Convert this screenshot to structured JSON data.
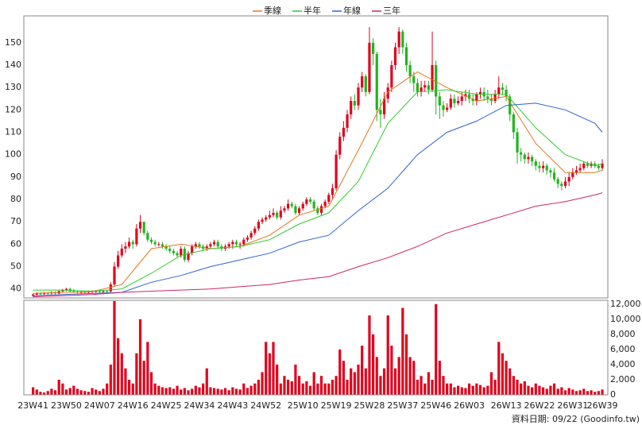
{
  "chart_data": [
    {
      "type": "candlestick",
      "up_color": "#e3001b",
      "down_color": "#1fb51f",
      "xlim": [
        -2.5,
        155.5
      ],
      "ylim": [
        36,
        162
      ],
      "yticks": [
        40,
        50,
        60,
        70,
        80,
        90,
        100,
        110,
        120,
        130,
        140,
        150
      ],
      "grid": true,
      "legend": "top",
      "open": [
        37,
        37.5,
        38,
        37.8,
        38.2,
        38,
        38.5,
        38,
        39,
        39.5,
        40,
        39,
        38.8,
        38.5,
        38.7,
        38.6,
        38.8,
        38.9,
        39,
        38.8,
        39,
        38.9,
        42,
        50,
        55,
        58,
        59,
        61,
        60,
        67,
        70,
        65,
        62,
        61,
        60,
        60,
        59,
        58,
        57,
        56,
        55,
        58,
        53,
        56,
        59,
        60,
        59,
        58,
        59,
        60,
        61,
        59,
        58,
        59,
        60,
        61,
        60,
        60,
        62,
        63,
        65,
        67,
        70,
        71,
        72,
        73,
        74,
        72,
        75,
        76,
        78,
        77,
        74,
        76,
        78,
        80,
        79,
        76,
        74,
        77,
        79,
        82,
        85,
        100,
        108,
        112,
        118,
        124,
        122,
        130,
        135,
        128,
        150,
        145,
        120,
        118,
        125,
        130,
        140,
        148,
        155,
        148,
        140,
        135,
        132,
        128,
        130,
        131,
        129,
        140,
        126,
        122,
        120,
        121,
        125,
        123,
        124,
        126,
        127,
        125,
        124,
        127,
        128,
        126,
        125,
        124,
        127,
        130,
        129,
        126,
        118,
        110,
        101,
        100,
        98,
        99,
        97,
        95,
        94,
        95,
        93,
        92,
        89,
        87,
        86,
        88,
        90,
        92,
        93,
        94,
        96,
        95,
        96,
        95,
        94
      ],
      "high": [
        38,
        38.5,
        38.5,
        38.7,
        38.7,
        39,
        39,
        39.5,
        40,
        40.5,
        40.5,
        40,
        39.3,
        39.2,
        39.2,
        39.3,
        39.4,
        39.5,
        39.5,
        39.5,
        39.5,
        43,
        52,
        57,
        60,
        61,
        63,
        62,
        69,
        73,
        70,
        66,
        63,
        62,
        61,
        61,
        60,
        59,
        58,
        57,
        59,
        59,
        57,
        60,
        61,
        61,
        60,
        60,
        61,
        62,
        62,
        60,
        60,
        61,
        62,
        62,
        61,
        63,
        64,
        66,
        68,
        71,
        72,
        73,
        75,
        76,
        75,
        77,
        77,
        80,
        79,
        78,
        77,
        79,
        81,
        81,
        80,
        77,
        78,
        80,
        83,
        87,
        102,
        110,
        115,
        120,
        126,
        127,
        132,
        137,
        136,
        157,
        152,
        146,
        125,
        128,
        132,
        142,
        150,
        157,
        156,
        150,
        142,
        137,
        134,
        133,
        133,
        133,
        155,
        142,
        128,
        124,
        123,
        127,
        127,
        126,
        128,
        129,
        129,
        127,
        128,
        130,
        130,
        129,
        127,
        129,
        135,
        132,
        131,
        127,
        119,
        112,
        103,
        101,
        101,
        100,
        98,
        97,
        97,
        96,
        94,
        94,
        90,
        88,
        90,
        92,
        94,
        95,
        96,
        97,
        97,
        97,
        97,
        96,
        98
      ],
      "low": [
        36.5,
        37,
        37.3,
        37.3,
        37.5,
        37.5,
        37.5,
        37.5,
        38.5,
        39,
        38.5,
        38.3,
        38,
        38,
        38.1,
        38.1,
        38.3,
        38.4,
        38.3,
        38.3,
        38.4,
        38.5,
        41,
        49,
        54,
        56,
        58,
        58,
        59,
        65,
        64,
        61,
        60,
        59,
        59,
        58,
        57,
        56,
        55,
        54,
        54,
        52,
        52,
        55,
        58,
        58,
        57,
        57,
        58,
        59,
        58,
        57,
        57,
        58,
        58,
        59,
        58,
        59,
        61,
        62,
        64,
        66,
        69,
        70,
        71,
        72,
        71,
        71,
        74,
        75,
        76,
        73,
        73,
        75,
        77,
        78,
        75,
        73,
        73,
        76,
        78,
        80,
        84,
        98,
        106,
        110,
        116,
        120,
        120,
        128,
        126,
        127,
        140,
        115,
        112,
        116,
        123,
        128,
        138,
        145,
        145,
        137,
        132,
        128,
        126,
        126,
        128,
        127,
        128,
        118,
        116,
        117,
        119,
        120,
        121,
        122,
        122,
        124,
        123,
        122,
        122,
        125,
        124,
        123,
        122,
        123,
        125,
        127,
        124,
        115,
        107,
        96,
        97,
        96,
        96,
        95,
        93,
        92,
        92,
        91,
        90,
        88,
        85,
        84,
        85,
        86,
        89,
        91,
        92,
        93,
        94,
        94,
        94,
        93,
        93
      ],
      "close": [
        37.5,
        38,
        37.8,
        38.2,
        38,
        38.5,
        38,
        39,
        39.5,
        40,
        39,
        38.8,
        38.5,
        38.7,
        38.6,
        38.8,
        38.9,
        39,
        38.8,
        39,
        38.9,
        42,
        50,
        55,
        58,
        59,
        61,
        60,
        67,
        70,
        65,
        62,
        61,
        60,
        60,
        59,
        58,
        57,
        56,
        55,
        58,
        53,
        56,
        59,
        60,
        59,
        58,
        59,
        60,
        61,
        59,
        58,
        59,
        60,
        61,
        60,
        60,
        62,
        63,
        65,
        67,
        70,
        71,
        72,
        73,
        74,
        72,
        75,
        76,
        78,
        77,
        74,
        76,
        78,
        80,
        79,
        76,
        74,
        77,
        79,
        82,
        85,
        100,
        108,
        112,
        118,
        124,
        122,
        130,
        135,
        128,
        150,
        145,
        120,
        118,
        125,
        130,
        140,
        148,
        155,
        148,
        140,
        135,
        132,
        128,
        130,
        131,
        129,
        140,
        126,
        122,
        120,
        121,
        125,
        123,
        124,
        126,
        127,
        125,
        124,
        127,
        128,
        126,
        125,
        124,
        127,
        130,
        129,
        126,
        118,
        110,
        101,
        100,
        98,
        99,
        97,
        95,
        94,
        95,
        93,
        92,
        89,
        87,
        86,
        88,
        90,
        92,
        93,
        94,
        96,
        95,
        96,
        95,
        94,
        96
      ],
      "series": [
        {
          "name": "季線",
          "color": "#e8741c",
          "x": [
            0,
            8,
            16,
            24,
            32,
            40,
            48,
            56,
            64,
            72,
            80,
            88,
            96,
            104,
            112,
            120,
            128,
            136,
            144,
            152,
            154
          ],
          "values": [
            38,
            38.5,
            38.8,
            42,
            58,
            60,
            58,
            59,
            64,
            73,
            77,
            102,
            128,
            137,
            130,
            124,
            126,
            105,
            92,
            92,
            93
          ]
        },
        {
          "name": "半年",
          "color": "#2ecc2e",
          "x": [
            0,
            8,
            16,
            24,
            32,
            40,
            48,
            56,
            64,
            72,
            80,
            88,
            96,
            104,
            112,
            120,
            128,
            136,
            144,
            152,
            154
          ],
          "values": [
            39.5,
            39.5,
            39,
            40,
            47,
            55,
            58,
            59,
            62,
            69,
            74,
            88,
            114,
            128,
            129,
            127,
            127,
            112,
            100,
            95,
            96
          ]
        },
        {
          "name": "年線",
          "color": "#2f62d0",
          "x": [
            0,
            8,
            16,
            24,
            32,
            40,
            48,
            56,
            64,
            72,
            80,
            88,
            96,
            104,
            112,
            120,
            128,
            136,
            144,
            152,
            154
          ],
          "values": [
            37,
            37.5,
            38,
            38.5,
            43,
            46,
            50,
            53,
            56,
            61,
            64,
            75,
            85,
            100,
            110,
            115,
            122,
            123,
            120,
            114,
            110
          ]
        },
        {
          "name": "三年",
          "color": "#d0246a",
          "x": [
            0,
            8,
            16,
            24,
            32,
            40,
            48,
            56,
            64,
            72,
            80,
            88,
            96,
            104,
            112,
            120,
            128,
            136,
            144,
            152,
            154
          ],
          "values": [
            36.5,
            37,
            37.5,
            38.5,
            39,
            39.5,
            40,
            41,
            42,
            44,
            45.5,
            50,
            54,
            59,
            65,
            69,
            73,
            77,
            79,
            82,
            83
          ]
        }
      ]
    },
    {
      "type": "bar",
      "color": "#e3001b",
      "xlim": [
        -2.5,
        155.5
      ],
      "ylim": [
        0,
        12500
      ],
      "grid": true,
      "yticks": [
        0,
        {
          "value": 2000,
          "label": "2,000"
        },
        {
          "value": 4000,
          "label": "4,000"
        },
        {
          "value": 6000,
          "label": "6,000"
        },
        {
          "value": 8000,
          "label": "8,000"
        },
        {
          "value": 10000,
          "label": "10,000"
        },
        {
          "value": 12000,
          "label": "12,000"
        }
      ],
      "xticks": [
        {
          "value": 0,
          "label": "23W41"
        },
        {
          "value": 9,
          "label": "23W50"
        },
        {
          "value": 18,
          "label": "24W07"
        },
        {
          "value": 27,
          "label": "24W16"
        },
        {
          "value": 36,
          "label": "24W25"
        },
        {
          "value": 45,
          "label": "24W34"
        },
        {
          "value": 54,
          "label": "24W43"
        },
        {
          "value": 63,
          "label": "24W52"
        },
        {
          "value": 73,
          "label": "25W10"
        },
        {
          "value": 82,
          "label": "25W19"
        },
        {
          "value": 91,
          "label": "25W28"
        },
        {
          "value": 100,
          "label": "25W37"
        },
        {
          "value": 109,
          "label": "25W46"
        },
        {
          "value": 118,
          "label": "26W03"
        },
        {
          "value": 128,
          "label": "26W13"
        },
        {
          "value": 137,
          "label": "26W22"
        },
        {
          "value": 146,
          "label": "26W31"
        },
        {
          "value": 154,
          "label": "26W39"
        }
      ],
      "values": [
        1000,
        700,
        400,
        300,
        500,
        800,
        600,
        2000,
        1500,
        700,
        900,
        1200,
        800,
        600,
        500,
        400,
        900,
        700,
        500,
        800,
        1500,
        4000,
        12400,
        7500,
        5500,
        3500,
        2000,
        1500,
        5500,
        10000,
        4500,
        7000,
        3000,
        1500,
        1200,
        1000,
        900,
        1000,
        800,
        1200,
        700,
        900,
        600,
        800,
        1200,
        1000,
        1500,
        3500,
        1000,
        900,
        800,
        700,
        900,
        600,
        1000,
        800,
        700,
        1500,
        900,
        1200,
        1500,
        2000,
        3000,
        7000,
        5500,
        7000,
        4000,
        1500,
        2500,
        2000,
        1800,
        4000,
        2500,
        1500,
        1800,
        1200,
        3000,
        1500,
        2500,
        1500,
        1500,
        2000,
        2500,
        6000,
        4500,
        2000,
        3500,
        3000,
        4000,
        6500,
        3500,
        10500,
        8000,
        5000,
        2500,
        3500,
        10500,
        6500,
        3500,
        5000,
        11500,
        8000,
        5000,
        4500,
        2000,
        2500,
        1500,
        3000,
        2000,
        12000,
        4500,
        2500,
        1500,
        1500,
        1000,
        1200,
        1000,
        900,
        1500,
        1200,
        1500,
        1300,
        1000,
        1200,
        3000,
        2000,
        7000,
        5500,
        4500,
        3500,
        2500,
        2000,
        1500,
        1800,
        1200,
        1000,
        1500,
        1200,
        1000,
        800,
        1200,
        1500,
        800,
        1000,
        600,
        900,
        700,
        500,
        600,
        800,
        500,
        600,
        400,
        500,
        700
      ]
    }
  ],
  "footer": "資料日期: 09/22 (Goodinfo.tw)"
}
